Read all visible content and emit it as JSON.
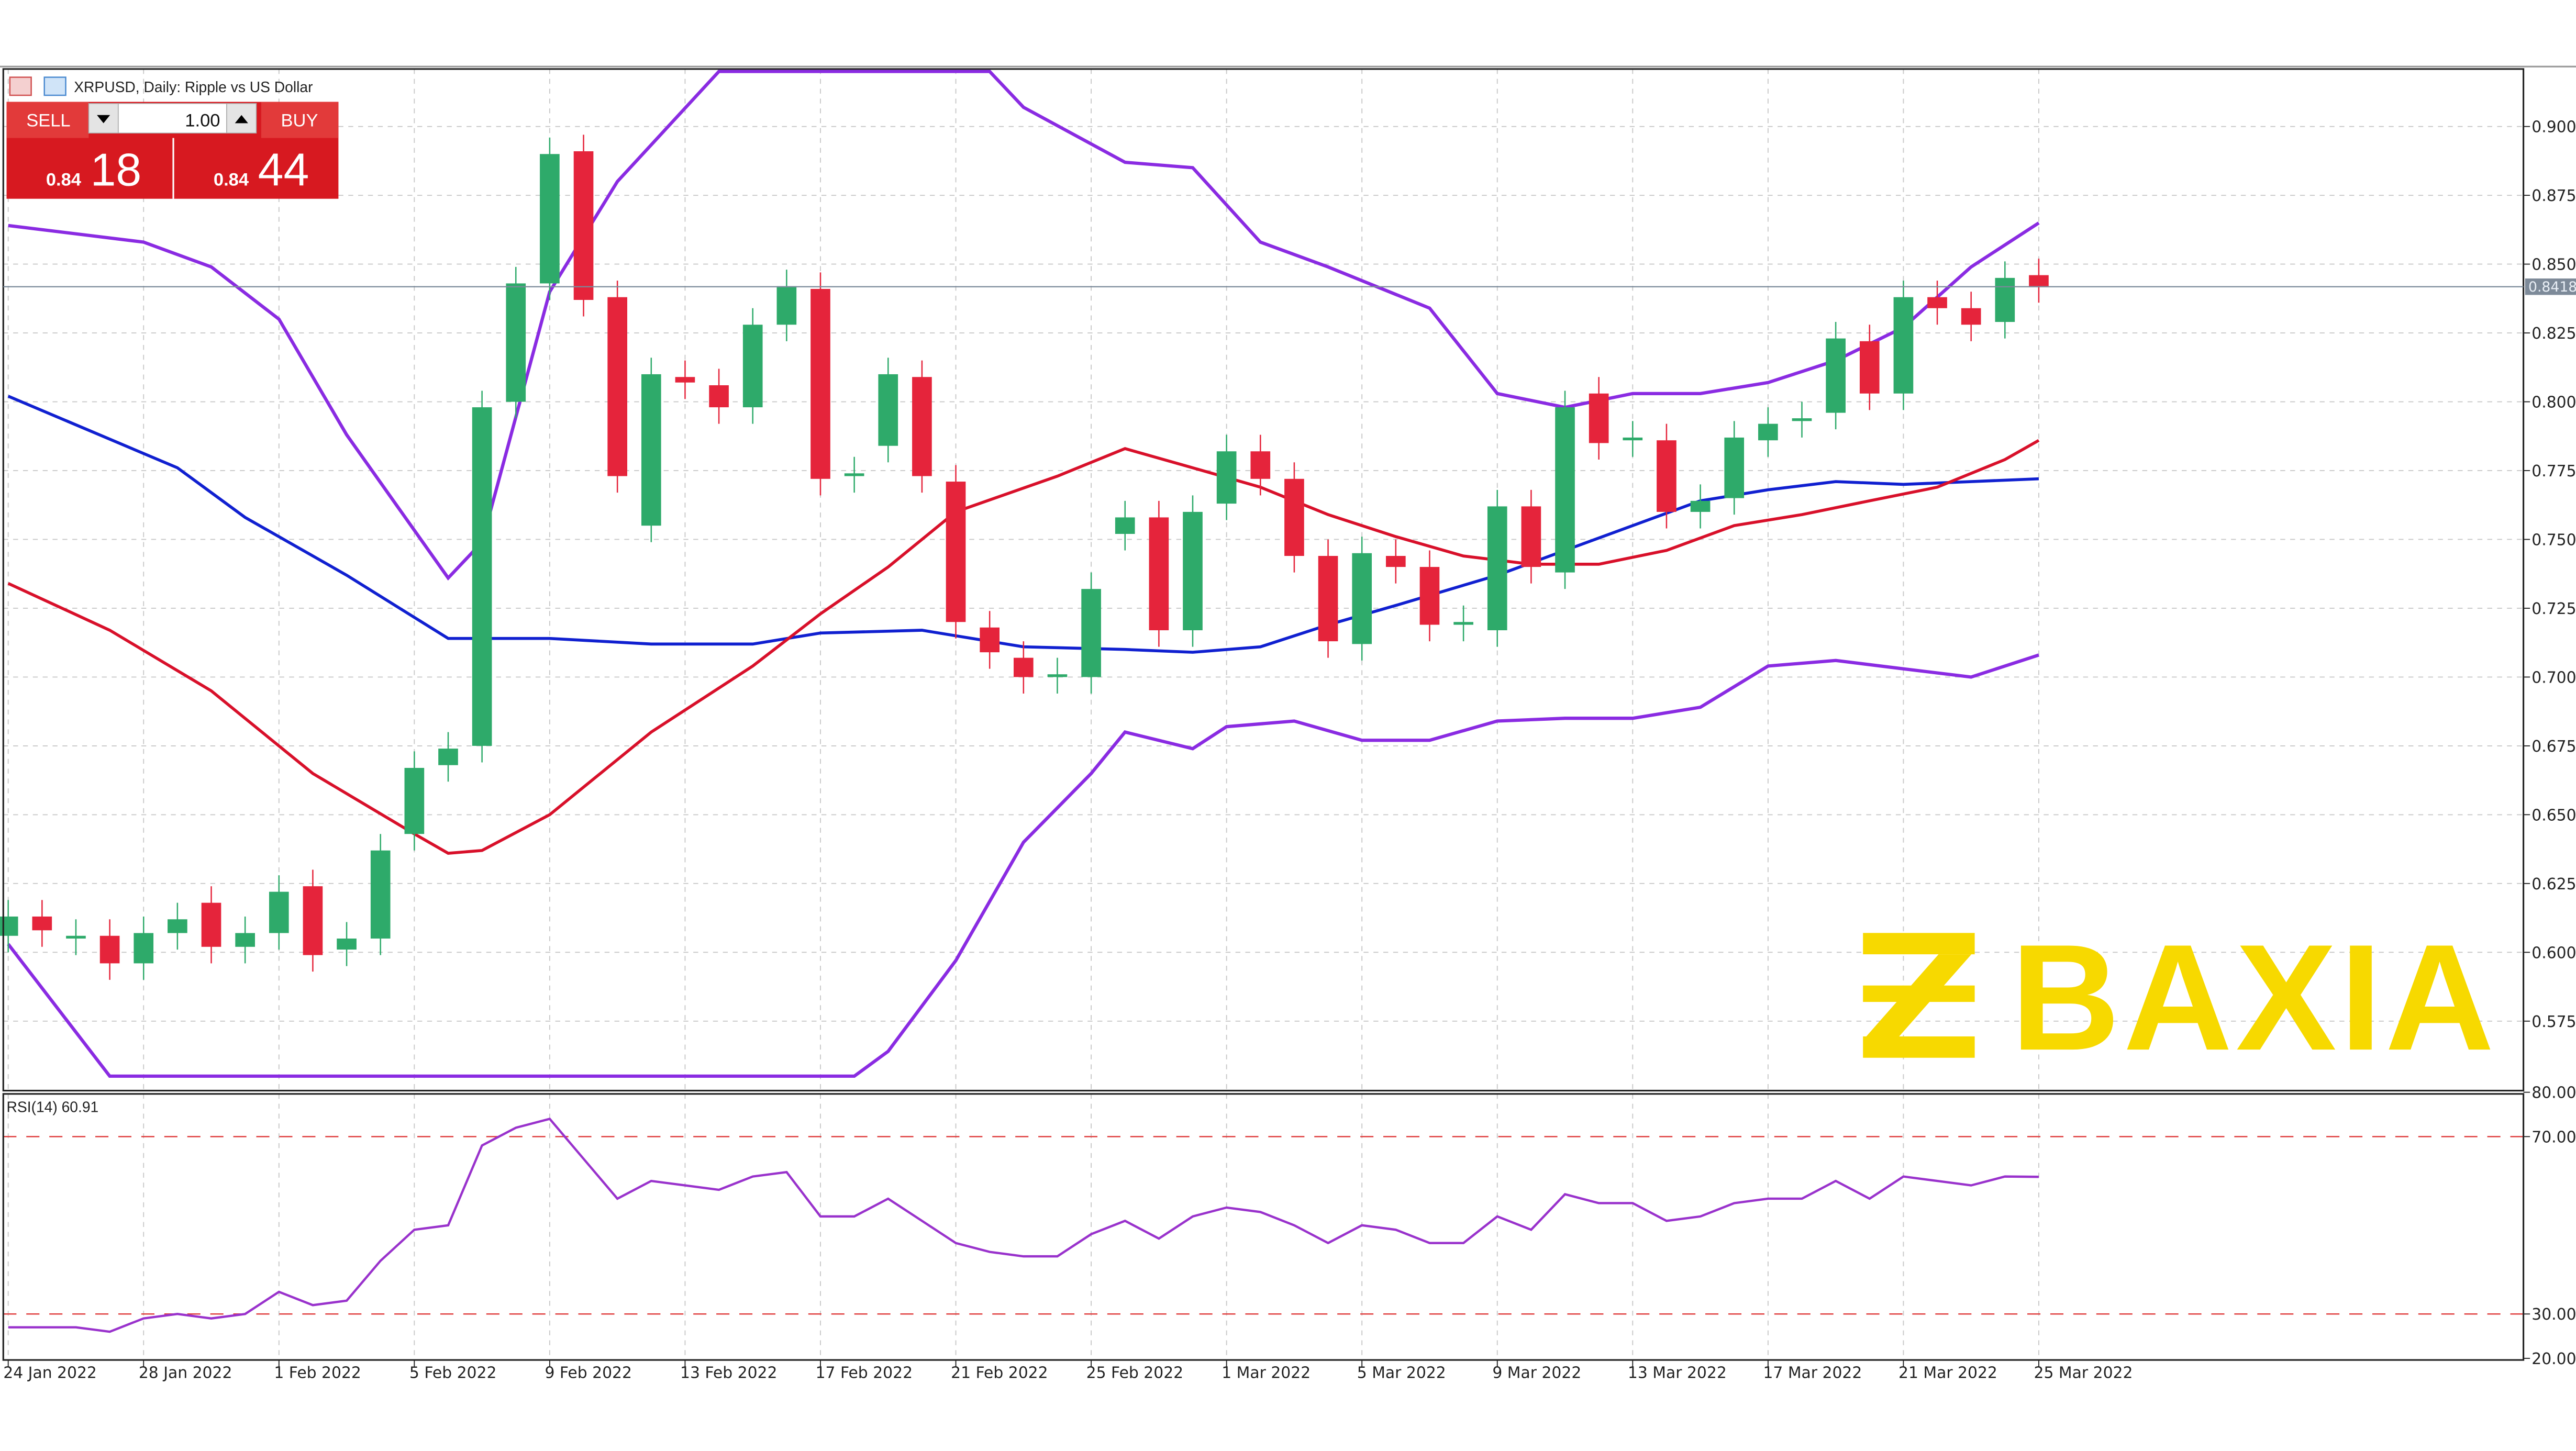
{
  "header": {
    "title": "XRPUSD, Daily:  Ripple vs US Dollar"
  },
  "trade_panel": {
    "sell_label": "SELL",
    "buy_label": "BUY",
    "lot_value": "1.00",
    "sell_price_prefix": "0.84",
    "sell_price_big": "18",
    "buy_price_prefix": "0.84",
    "buy_price_big": "44"
  },
  "current_price_tag": "0.8418",
  "rsi_label": "RSI(14) 60.91",
  "watermark": "BAXIA",
  "colors": {
    "bull": "#2eaa6a",
    "bear": "#e5243b",
    "ma_slow": "#1020d0",
    "ma_fast": "#d8102a",
    "bollinger": "#8a2be2",
    "rsi": "#9932cc",
    "watermark": "#f7d900",
    "panel_red": "#d71920"
  },
  "chart_data": [
    {
      "type": "candlestick",
      "title": "XRPUSD, Daily:  Ripple vs US Dollar",
      "ylim": [
        0.56,
        0.915
      ],
      "y_ticks": [
        "0.9000",
        "0.8750",
        "0.8500",
        "0.8250",
        "0.8000",
        "0.7750",
        "0.7500",
        "0.7250",
        "0.7000",
        "0.6750",
        "0.6500",
        "0.6250",
        "0.6000",
        "0.5750"
      ],
      "x_ticks": [
        "24 Jan 2022",
        "28 Jan 2022",
        "1 Feb 2022",
        "5 Feb 2022",
        "9 Feb 2022",
        "13 Feb 2022",
        "17 Feb 2022",
        "21 Feb 2022",
        "25 Feb 2022",
        "1 Mar 2022",
        "5 Mar 2022",
        "9 Mar 2022",
        "13 Mar 2022",
        "17 Mar 2022",
        "21 Mar 2022",
        "25 Mar 2022"
      ],
      "first_date": "24 Jan 2022",
      "candles_oc": [
        [
          0.606,
          0.613
        ],
        [
          0.613,
          0.608
        ],
        [
          0.605,
          0.606
        ],
        [
          0.606,
          0.596
        ],
        [
          0.596,
          0.607
        ],
        [
          0.607,
          0.612
        ],
        [
          0.618,
          0.602
        ],
        [
          0.602,
          0.607
        ],
        [
          0.607,
          0.622
        ],
        [
          0.624,
          0.599
        ],
        [
          0.601,
          0.605
        ],
        [
          0.605,
          0.637
        ],
        [
          0.643,
          0.667
        ],
        [
          0.668,
          0.674
        ],
        [
          0.675,
          0.798
        ],
        [
          0.8,
          0.843
        ],
        [
          0.843,
          0.89
        ],
        [
          0.891,
          0.837
        ],
        [
          0.838,
          0.773
        ],
        [
          0.755,
          0.81
        ],
        [
          0.809,
          0.807
        ],
        [
          0.806,
          0.798
        ],
        [
          0.798,
          0.828
        ],
        [
          0.828,
          0.842
        ],
        [
          0.841,
          0.772
        ],
        [
          0.773,
          0.774
        ],
        [
          0.784,
          0.81
        ],
        [
          0.809,
          0.773
        ],
        [
          0.771,
          0.72
        ],
        [
          0.718,
          0.709
        ],
        [
          0.707,
          0.7
        ],
        [
          0.7,
          0.701
        ],
        [
          0.7,
          0.732
        ],
        [
          0.752,
          0.758
        ],
        [
          0.758,
          0.717
        ],
        [
          0.717,
          0.76
        ],
        [
          0.763,
          0.782
        ],
        [
          0.782,
          0.772
        ],
        [
          0.772,
          0.744
        ],
        [
          0.744,
          0.713
        ],
        [
          0.712,
          0.745
        ],
        [
          0.744,
          0.74
        ],
        [
          0.74,
          0.719
        ],
        [
          0.719,
          0.72
        ],
        [
          0.717,
          0.762
        ],
        [
          0.762,
          0.74
        ],
        [
          0.738,
          0.798
        ],
        [
          0.803,
          0.785
        ],
        [
          0.786,
          0.787
        ],
        [
          0.786,
          0.76
        ],
        [
          0.76,
          0.764
        ],
        [
          0.765,
          0.787
        ],
        [
          0.786,
          0.792
        ],
        [
          0.793,
          0.794
        ],
        [
          0.796,
          0.823
        ],
        [
          0.822,
          0.803
        ],
        [
          0.803,
          0.838
        ],
        [
          0.838,
          0.834
        ],
        [
          0.834,
          0.828
        ],
        [
          0.829,
          0.845
        ],
        [
          0.846,
          0.842
        ]
      ],
      "current_price": 0.8418,
      "overlays": {
        "ma_slow": [
          [
            0,
            0.802
          ],
          [
            5,
            0.776
          ],
          [
            7,
            0.758
          ],
          [
            10,
            0.737
          ],
          [
            13,
            0.714
          ],
          [
            16,
            0.714
          ],
          [
            19,
            0.712
          ],
          [
            22,
            0.712
          ],
          [
            24,
            0.716
          ],
          [
            27,
            0.717
          ],
          [
            30,
            0.711
          ],
          [
            33,
            0.71
          ],
          [
            35,
            0.709
          ],
          [
            37,
            0.711
          ],
          [
            39,
            0.719
          ],
          [
            41,
            0.726
          ],
          [
            44,
            0.737
          ],
          [
            46,
            0.746
          ],
          [
            48,
            0.755
          ],
          [
            50,
            0.764
          ],
          [
            52,
            0.768
          ],
          [
            54,
            0.771
          ],
          [
            56,
            0.77
          ],
          [
            58,
            0.771
          ],
          [
            60,
            0.772
          ]
        ],
        "ma_fast": [
          [
            0,
            0.734
          ],
          [
            3,
            0.717
          ],
          [
            6,
            0.695
          ],
          [
            9,
            0.665
          ],
          [
            12,
            0.643
          ],
          [
            13,
            0.636
          ],
          [
            14,
            0.637
          ],
          [
            16,
            0.65
          ],
          [
            19,
            0.68
          ],
          [
            22,
            0.704
          ],
          [
            24,
            0.723
          ],
          [
            26,
            0.74
          ],
          [
            28,
            0.76
          ],
          [
            31,
            0.773
          ],
          [
            33,
            0.783
          ],
          [
            35,
            0.776
          ],
          [
            37,
            0.769
          ],
          [
            39,
            0.759
          ],
          [
            41,
            0.751
          ],
          [
            43,
            0.744
          ],
          [
            45,
            0.741
          ],
          [
            47,
            0.741
          ],
          [
            49,
            0.746
          ],
          [
            51,
            0.755
          ],
          [
            53,
            0.759
          ],
          [
            55,
            0.764
          ],
          [
            57,
            0.769
          ],
          [
            59,
            0.779
          ],
          [
            60,
            0.786
          ]
        ],
        "bollinger_upper": [
          [
            0,
            0.864
          ],
          [
            4,
            0.858
          ],
          [
            6,
            0.849
          ],
          [
            8,
            0.83
          ],
          [
            10,
            0.788
          ],
          [
            13,
            0.736
          ],
          [
            14,
            0.749
          ],
          [
            16,
            0.84
          ],
          [
            18,
            0.88
          ],
          [
            21,
            0.92
          ],
          [
            29,
            0.92
          ],
          [
            30,
            0.907
          ],
          [
            33,
            0.887
          ],
          [
            35,
            0.885
          ],
          [
            37,
            0.858
          ],
          [
            39,
            0.849
          ],
          [
            42,
            0.834
          ],
          [
            44,
            0.803
          ],
          [
            46,
            0.798
          ],
          [
            48,
            0.803
          ],
          [
            50,
            0.803
          ],
          [
            52,
            0.807
          ],
          [
            54,
            0.815
          ],
          [
            56,
            0.827
          ],
          [
            58,
            0.849
          ],
          [
            60,
            0.865
          ]
        ],
        "bollinger_lower": [
          [
            0,
            0.603
          ],
          [
            3,
            0.555
          ],
          [
            25,
            0.555
          ],
          [
            26,
            0.564
          ],
          [
            28,
            0.597
          ],
          [
            30,
            0.64
          ],
          [
            32,
            0.665
          ],
          [
            33,
            0.68
          ],
          [
            35,
            0.674
          ],
          [
            36,
            0.682
          ],
          [
            38,
            0.684
          ],
          [
            40,
            0.677
          ],
          [
            42,
            0.677
          ],
          [
            44,
            0.684
          ],
          [
            46,
            0.685
          ],
          [
            48,
            0.685
          ],
          [
            50,
            0.689
          ],
          [
            52,
            0.704
          ],
          [
            54,
            0.706
          ],
          [
            56,
            0.703
          ],
          [
            58,
            0.7
          ],
          [
            60,
            0.708
          ]
        ]
      }
    },
    {
      "type": "line",
      "title": "RSI(14) 60.91",
      "ylim": [
        20,
        80
      ],
      "y_ticks": [
        "80.00",
        "70.00",
        "30.00",
        "20.00"
      ],
      "levels": [
        70,
        30
      ],
      "values": [
        27,
        27,
        27,
        26,
        29,
        30,
        29,
        30,
        35,
        32,
        33,
        42,
        49,
        50,
        68,
        72,
        74,
        65,
        56,
        60,
        59,
        58,
        61,
        62,
        52,
        52,
        56,
        51,
        46,
        44,
        43,
        43,
        48,
        51,
        47,
        52,
        54,
        53,
        50,
        46,
        50,
        49,
        46,
        46,
        52,
        49,
        57,
        55,
        55,
        51,
        52,
        55,
        56,
        56,
        60,
        56,
        61,
        60,
        59,
        61,
        60.91
      ]
    }
  ]
}
